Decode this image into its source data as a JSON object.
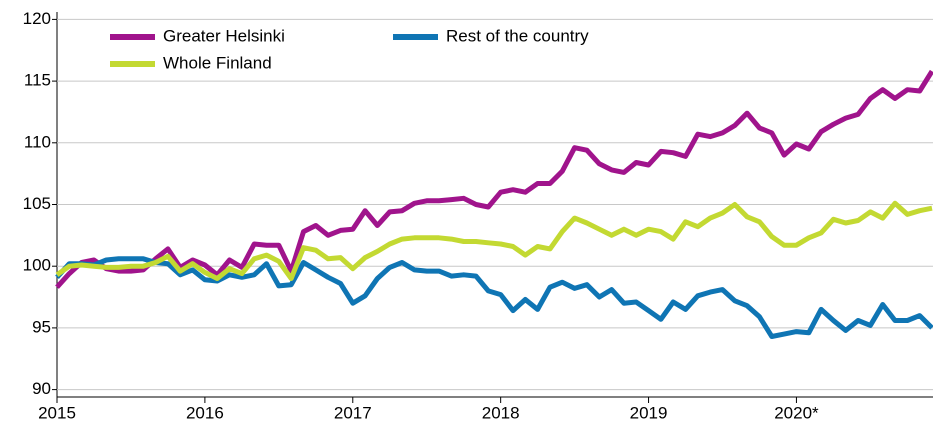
{
  "chart_data": {
    "type": "line",
    "categories": [
      "2015",
      null,
      null,
      null,
      null,
      null,
      null,
      null,
      null,
      null,
      null,
      null,
      "2016",
      null,
      null,
      null,
      null,
      null,
      null,
      null,
      null,
      null,
      null,
      null,
      "2017",
      null,
      null,
      null,
      null,
      null,
      null,
      null,
      null,
      null,
      null,
      null,
      "2018",
      null,
      null,
      null,
      null,
      null,
      null,
      null,
      null,
      null,
      null,
      null,
      "2019",
      null,
      null,
      null,
      null,
      null,
      null,
      null,
      null,
      null,
      null,
      null,
      "2020*",
      null,
      null,
      null,
      null,
      null,
      null,
      null,
      null,
      null,
      null,
      null
    ],
    "series": [
      {
        "name": "Greater Helsinki",
        "color": "#a0148c",
        "values": [
          98.3,
          99.4,
          100.3,
          100.5,
          99.8,
          99.6,
          99.6,
          99.7,
          100.6,
          101.4,
          99.9,
          100.5,
          100.1,
          99.3,
          100.5,
          99.9,
          101.8,
          101.7,
          101.7,
          99.6,
          102.8,
          103.3,
          102.5,
          102.9,
          103.0,
          104.5,
          103.3,
          104.4,
          104.5,
          105.1,
          105.3,
          105.3,
          105.4,
          105.5,
          105.0,
          104.8,
          106.0,
          106.2,
          106.0,
          106.7,
          106.7,
          107.7,
          109.6,
          109.4,
          108.3,
          107.8,
          107.6,
          108.4,
          108.2,
          109.3,
          109.2,
          108.9,
          110.7,
          110.5,
          110.8,
          111.4,
          112.4,
          111.2,
          110.8,
          109.0,
          109.9,
          109.5,
          110.9,
          111.5,
          112.0,
          112.3,
          113.6,
          114.3,
          113.6,
          114.3,
          114.2,
          115.8
        ]
      },
      {
        "name": "Rest of the country",
        "color": "#0f75b4",
        "values": [
          99.1,
          100.2,
          100.2,
          100.1,
          100.5,
          100.6,
          100.6,
          100.6,
          100.3,
          100.2,
          99.3,
          99.7,
          98.9,
          98.8,
          99.3,
          99.1,
          99.3,
          100.2,
          98.4,
          98.5,
          100.3,
          99.7,
          99.1,
          98.6,
          97.0,
          97.6,
          99.0,
          99.9,
          100.3,
          99.7,
          99.6,
          99.6,
          99.2,
          99.3,
          99.2,
          98.0,
          97.7,
          96.4,
          97.3,
          96.5,
          98.3,
          98.7,
          98.2,
          98.5,
          97.5,
          98.1,
          97.0,
          97.1,
          96.4,
          95.7,
          97.1,
          96.5,
          97.6,
          97.9,
          98.1,
          97.2,
          96.8,
          95.9,
          94.3,
          94.5,
          94.7,
          94.6,
          96.5,
          95.6,
          94.8,
          95.6,
          95.2,
          96.9,
          95.6,
          95.6,
          96.0,
          95.0
        ]
      },
      {
        "name": "Whole Finland",
        "color": "#c3d932",
        "values": [
          99.3,
          100.0,
          100.1,
          100.0,
          99.9,
          99.9,
          100.0,
          100.0,
          100.3,
          100.8,
          99.6,
          100.2,
          99.5,
          99.0,
          99.8,
          99.4,
          100.6,
          100.9,
          100.4,
          99.0,
          101.5,
          101.3,
          100.6,
          100.7,
          99.8,
          100.7,
          101.2,
          101.8,
          102.2,
          102.3,
          102.3,
          102.3,
          102.2,
          102.0,
          102.0,
          101.9,
          101.8,
          101.6,
          100.9,
          101.6,
          101.4,
          102.8,
          103.9,
          103.5,
          103.0,
          102.5,
          103.0,
          102.5,
          103.0,
          102.8,
          102.2,
          103.6,
          103.2,
          103.9,
          104.3,
          105.0,
          104.0,
          103.6,
          102.4,
          101.7,
          101.7,
          102.3,
          102.7,
          103.8,
          103.5,
          103.7,
          104.4,
          103.9,
          105.1,
          104.2,
          104.5,
          104.7
        ]
      }
    ],
    "ylim": [
      89.4,
      120.6
    ],
    "yticks": [
      90,
      95,
      100,
      105,
      110,
      115,
      120
    ],
    "grid": true
  }
}
